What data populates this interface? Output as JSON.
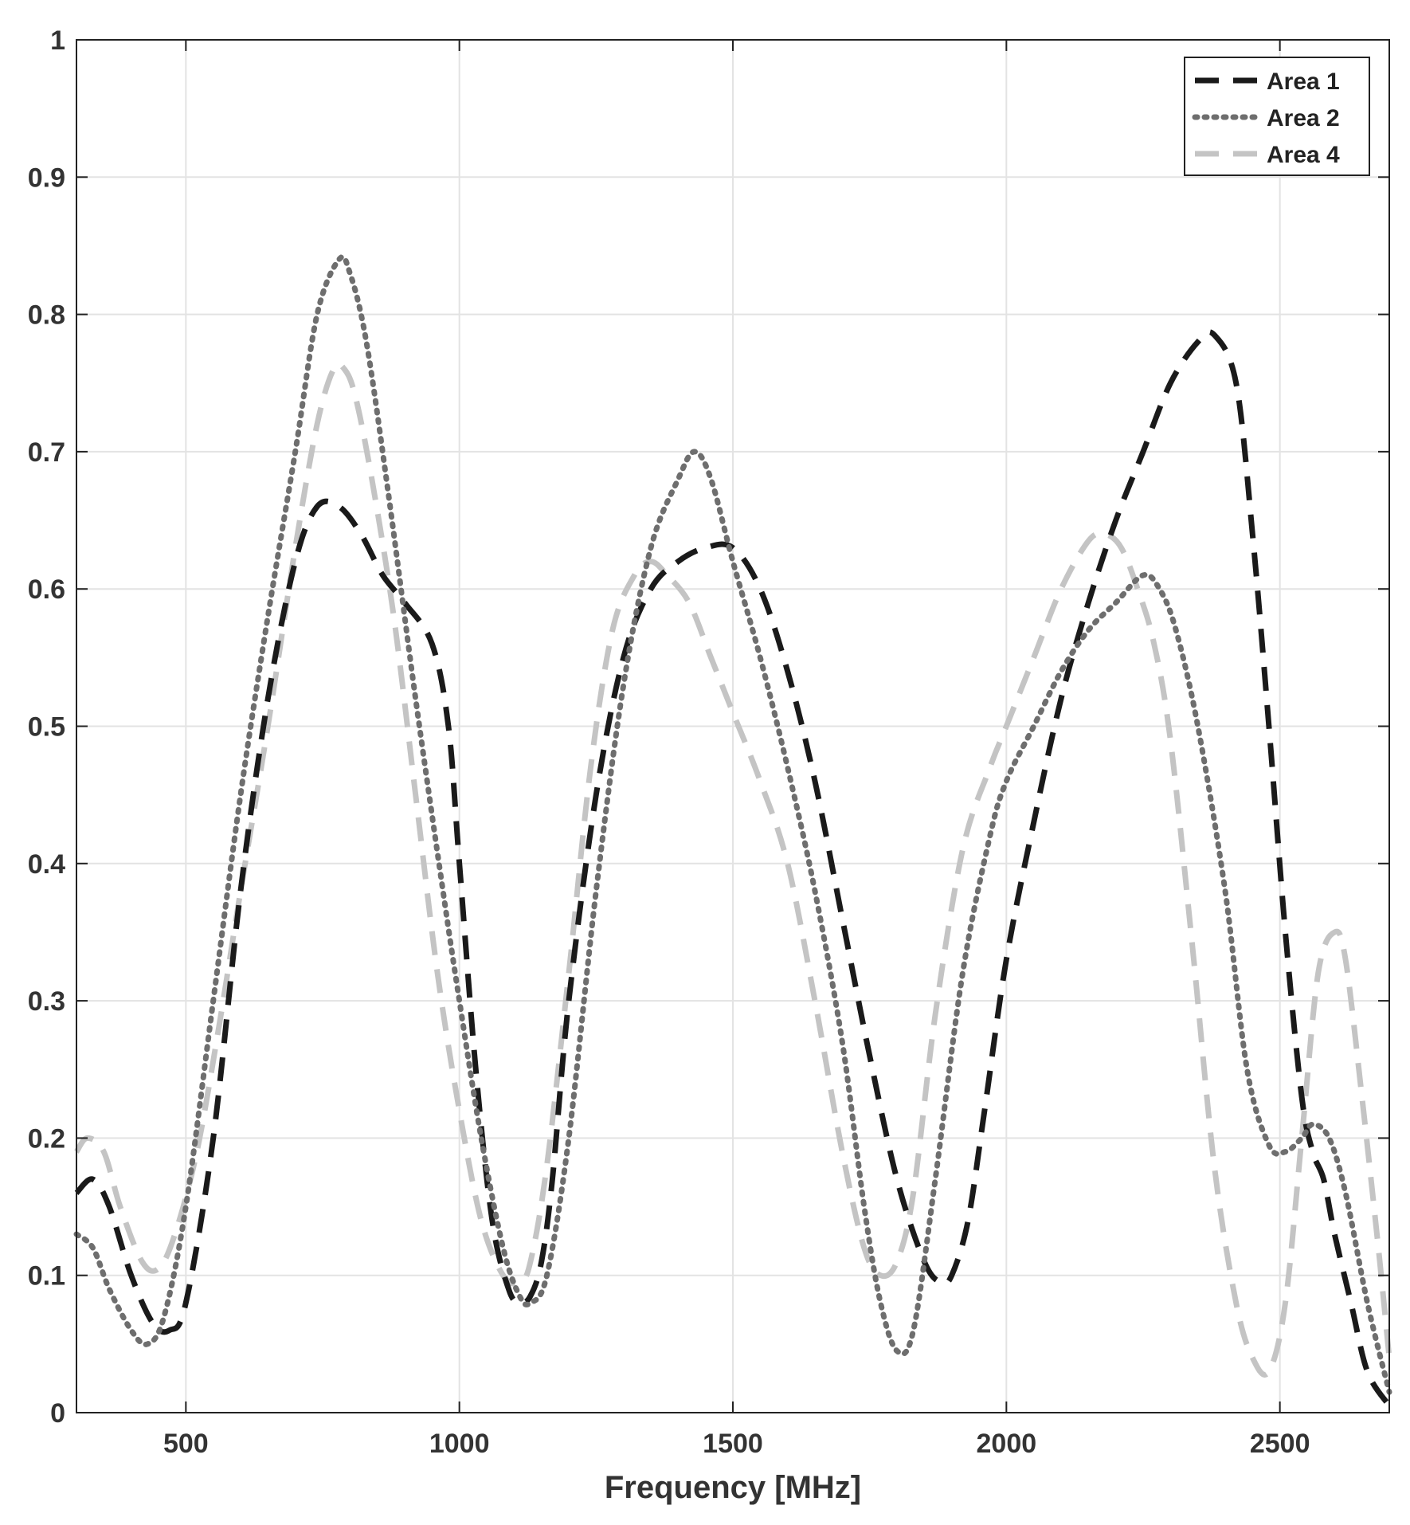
{
  "chart_data": {
    "type": "line",
    "title": "",
    "xlabel": "Frequency [MHz]",
    "ylabel": "",
    "xlim": [
      300,
      2700
    ],
    "ylim": [
      0,
      1
    ],
    "x_ticks": [
      500,
      1000,
      1500,
      2000,
      2500
    ],
    "x_tick_labels": [
      "500",
      "1000",
      "1500",
      "2000",
      "2500"
    ],
    "y_ticks": [
      0,
      0.1,
      0.2,
      0.3,
      0.4,
      0.5,
      0.6,
      0.7,
      0.8,
      0.9,
      1
    ],
    "y_tick_labels": [
      "0",
      "0.1",
      "0.2",
      "0.3",
      "0.4",
      "0.5",
      "0.6",
      "0.7",
      "0.8",
      "0.9",
      "1"
    ],
    "grid": true,
    "legend": {
      "position": "top-right"
    },
    "series": [
      {
        "name": "Area 1",
        "color": "#1a1a1a",
        "style": "dashed",
        "x": [
          300,
          330,
          360,
          400,
          440,
          470,
          500,
          550,
          600,
          650,
          700,
          740,
          780,
          820,
          860,
          900,
          950,
          980,
          1000,
          1030,
          1060,
          1090,
          1110,
          1130,
          1150,
          1170,
          1200,
          1250,
          1300,
          1350,
          1400,
          1450,
          1500,
          1550,
          1600,
          1650,
          1700,
          1750,
          1800,
          1850,
          1880,
          1900,
          1930,
          1960,
          2000,
          2050,
          2100,
          2150,
          2200,
          2250,
          2300,
          2350,
          2380,
          2420,
          2450,
          2480,
          2510,
          2540,
          2560,
          2580,
          2600,
          2630,
          2660,
          2700
        ],
        "y": [
          0.16,
          0.17,
          0.15,
          0.1,
          0.065,
          0.06,
          0.08,
          0.2,
          0.38,
          0.52,
          0.62,
          0.66,
          0.66,
          0.64,
          0.61,
          0.59,
          0.56,
          0.5,
          0.4,
          0.25,
          0.14,
          0.09,
          0.08,
          0.085,
          0.11,
          0.17,
          0.3,
          0.45,
          0.55,
          0.6,
          0.62,
          0.63,
          0.63,
          0.6,
          0.54,
          0.46,
          0.36,
          0.26,
          0.17,
          0.11,
          0.095,
          0.1,
          0.14,
          0.22,
          0.33,
          0.43,
          0.52,
          0.59,
          0.65,
          0.7,
          0.75,
          0.78,
          0.785,
          0.75,
          0.64,
          0.5,
          0.35,
          0.23,
          0.19,
          0.17,
          0.13,
          0.08,
          0.03,
          0.005
        ]
      },
      {
        "name": "Area 2",
        "color": "#6e6e6e",
        "style": "dotted",
        "x": [
          300,
          330,
          360,
          400,
          430,
          460,
          500,
          550,
          600,
          650,
          700,
          740,
          780,
          800,
          830,
          870,
          920,
          970,
          1000,
          1040,
          1080,
          1110,
          1130,
          1160,
          1200,
          1250,
          1300,
          1350,
          1400,
          1430,
          1460,
          1500,
          1550,
          1600,
          1650,
          1700,
          1740,
          1770,
          1800,
          1830,
          1870,
          1920,
          1970,
          2000,
          2050,
          2100,
          2150,
          2200,
          2250,
          2280,
          2310,
          2350,
          2400,
          2440,
          2480,
          2510,
          2540,
          2560,
          2590,
          2620,
          2660,
          2700
        ],
        "y": [
          0.13,
          0.12,
          0.09,
          0.06,
          0.05,
          0.07,
          0.15,
          0.3,
          0.45,
          0.58,
          0.7,
          0.8,
          0.84,
          0.83,
          0.78,
          0.67,
          0.52,
          0.38,
          0.3,
          0.2,
          0.12,
          0.085,
          0.08,
          0.1,
          0.2,
          0.38,
          0.53,
          0.63,
          0.68,
          0.7,
          0.68,
          0.62,
          0.55,
          0.47,
          0.38,
          0.27,
          0.15,
          0.08,
          0.045,
          0.06,
          0.17,
          0.32,
          0.42,
          0.46,
          0.5,
          0.54,
          0.57,
          0.59,
          0.61,
          0.6,
          0.57,
          0.5,
          0.38,
          0.25,
          0.195,
          0.19,
          0.2,
          0.21,
          0.2,
          0.16,
          0.08,
          0.015
        ]
      },
      {
        "name": "Area 4",
        "color": "#c4c4c4",
        "style": "dashed",
        "x": [
          300,
          320,
          350,
          380,
          420,
          450,
          480,
          520,
          560,
          600,
          650,
          700,
          740,
          770,
          790,
          810,
          840,
          880,
          920,
          960,
          1000,
          1040,
          1080,
          1110,
          1130,
          1160,
          1200,
          1240,
          1280,
          1320,
          1350,
          1380,
          1420,
          1460,
          1500,
          1550,
          1600,
          1650,
          1700,
          1740,
          1770,
          1800,
          1830,
          1870,
          1920,
          1970,
          2000,
          2050,
          2100,
          2150,
          2180,
          2210,
          2240,
          2270,
          2300,
          2340,
          2380,
          2420,
          2450,
          2480,
          2510,
          2540,
          2570,
          2600,
          2620,
          2650,
          2680,
          2700
        ],
        "y": [
          0.19,
          0.2,
          0.19,
          0.15,
          0.11,
          0.105,
          0.13,
          0.19,
          0.28,
          0.38,
          0.5,
          0.63,
          0.72,
          0.76,
          0.76,
          0.74,
          0.68,
          0.58,
          0.45,
          0.32,
          0.22,
          0.14,
          0.1,
          0.095,
          0.11,
          0.18,
          0.32,
          0.47,
          0.57,
          0.61,
          0.62,
          0.61,
          0.59,
          0.55,
          0.51,
          0.46,
          0.4,
          0.3,
          0.19,
          0.12,
          0.1,
          0.11,
          0.16,
          0.29,
          0.41,
          0.47,
          0.5,
          0.55,
          0.6,
          0.635,
          0.64,
          0.63,
          0.6,
          0.56,
          0.49,
          0.34,
          0.18,
          0.08,
          0.04,
          0.03,
          0.08,
          0.2,
          0.32,
          0.35,
          0.33,
          0.23,
          0.12,
          0.04
        ]
      }
    ]
  }
}
